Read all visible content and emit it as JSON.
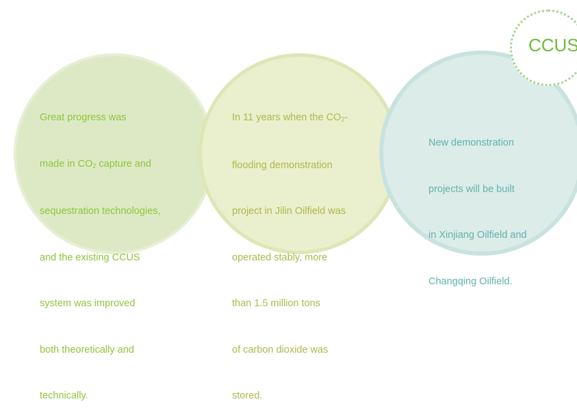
{
  "badge": {
    "label": "CCUS"
  },
  "circles": [
    {
      "lines": [
        "Great progress was",
        [
          "made in CO",
          "2",
          " capture and"
        ],
        "sequestration technologies,",
        "and the existing CCUS",
        "system was improved",
        "both theoretically and",
        "technically."
      ]
    },
    {
      "lines": [
        [
          "In 11 years when the CO",
          "2",
          "-"
        ],
        "flooding demonstration",
        "project in Jilin Oilfield was",
        "operated stably, more",
        "than 1.5 million tons",
        "of carbon dioxide was",
        "stored."
      ]
    },
    {
      "lines": [
        "New demonstration",
        "projects will be built",
        "in Xinjiang Oilfield and",
        "Changqing Oilfield."
      ]
    }
  ],
  "colors": {
    "circle_1_text": "#8ec53a",
    "circle_2_text": "#aeb84a",
    "circle_3_text": "#5fb3ad",
    "badge_text": "#6dbb3c"
  }
}
